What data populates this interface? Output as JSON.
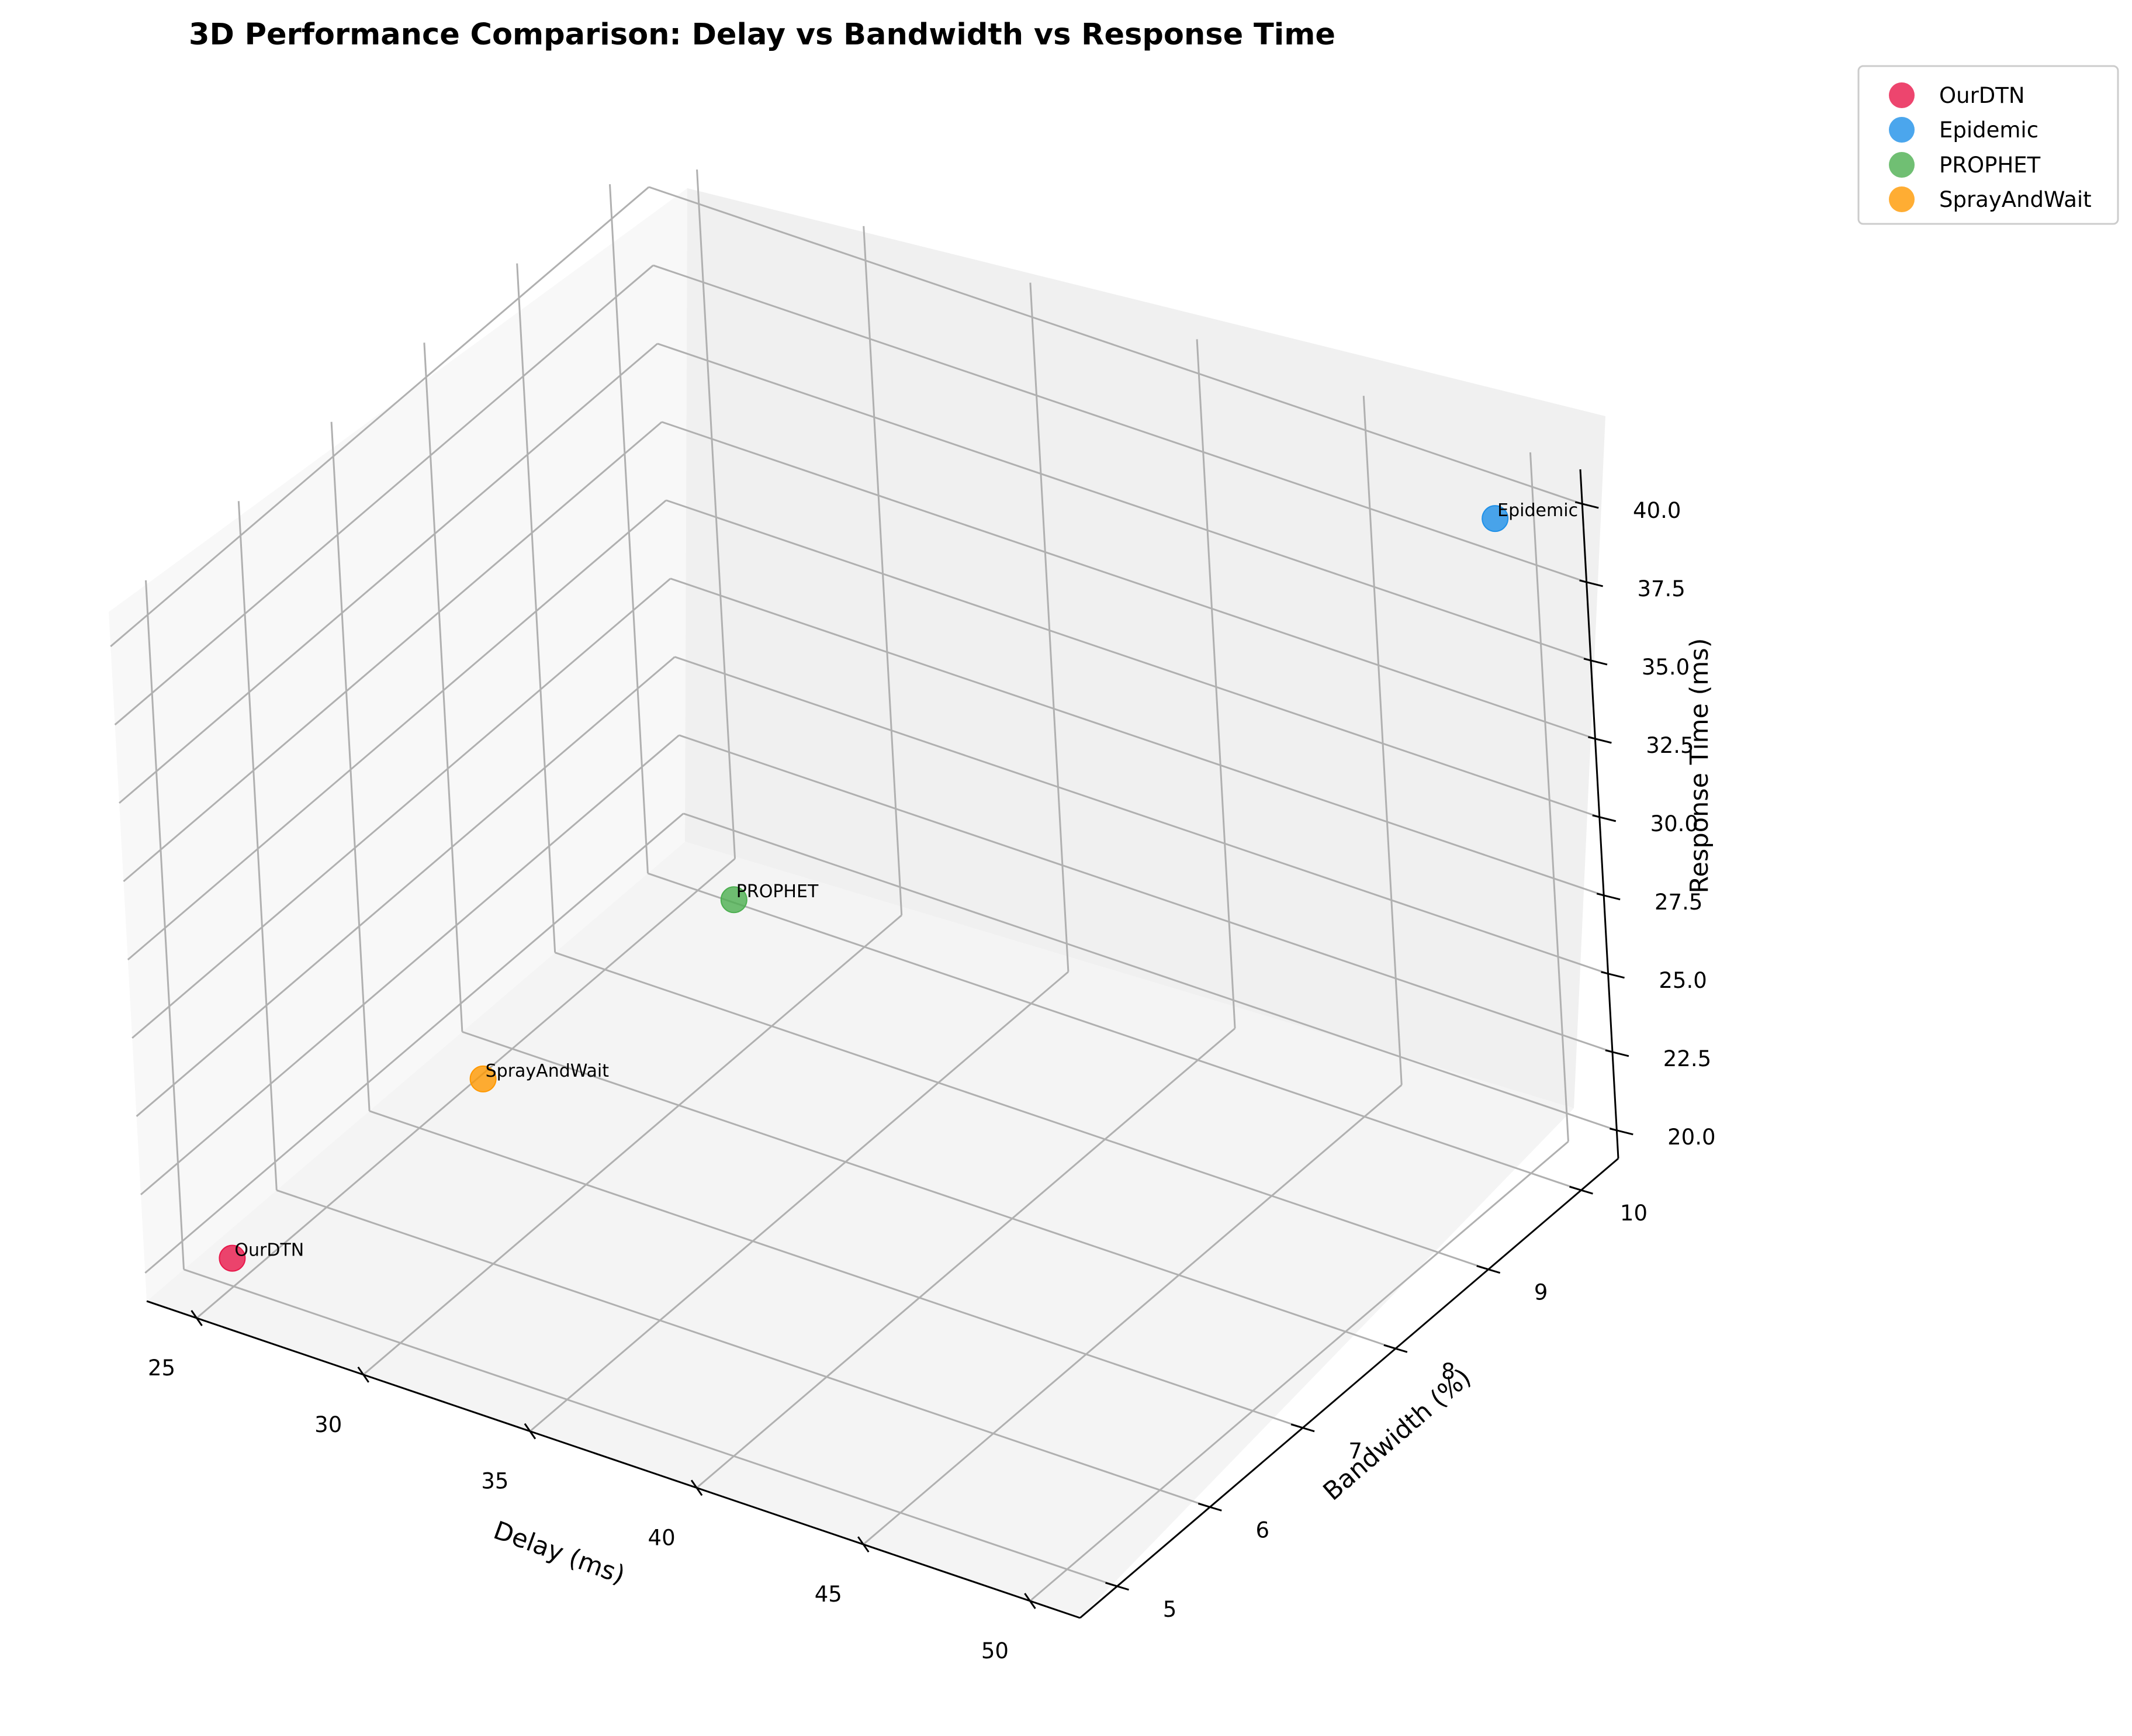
{
  "chart_data": {
    "type": "scatter",
    "title": "3D Performance Comparison: Delay vs Bandwidth vs Response Time",
    "xlabel": "Delay (ms)",
    "ylabel": "Bandwidth (%)",
    "zlabel": "Response Time (ms)",
    "xlim": [
      23.5,
      51.5
    ],
    "ylim": [
      4.6,
      10.4
    ],
    "zlim": [
      19.1,
      41.1
    ],
    "xticks": [
      "25",
      "30",
      "35",
      "40",
      "45",
      "50"
    ],
    "yticks": [
      "5",
      "6",
      "7",
      "8",
      "9",
      "10"
    ],
    "zticks": [
      "20.0",
      "22.5",
      "25.0",
      "27.5",
      "30.0",
      "32.5",
      "35.0",
      "37.5",
      "40.0"
    ],
    "grid": true,
    "legend_position": "top-right",
    "series": [
      {
        "name": "OurDTN",
        "color": "#e8174a",
        "x": 25,
        "y": 5,
        "z": 20
      },
      {
        "name": "Epidemic",
        "color": "#1e90e8",
        "x": 50,
        "y": 10,
        "z": 40
      },
      {
        "name": "PROPHET",
        "color": "#4caf50",
        "x": 35,
        "y": 7,
        "z": 30
      },
      {
        "name": "SprayAndWait",
        "color": "#ff9800",
        "x": 30,
        "y": 6,
        "z": 25
      }
    ]
  }
}
